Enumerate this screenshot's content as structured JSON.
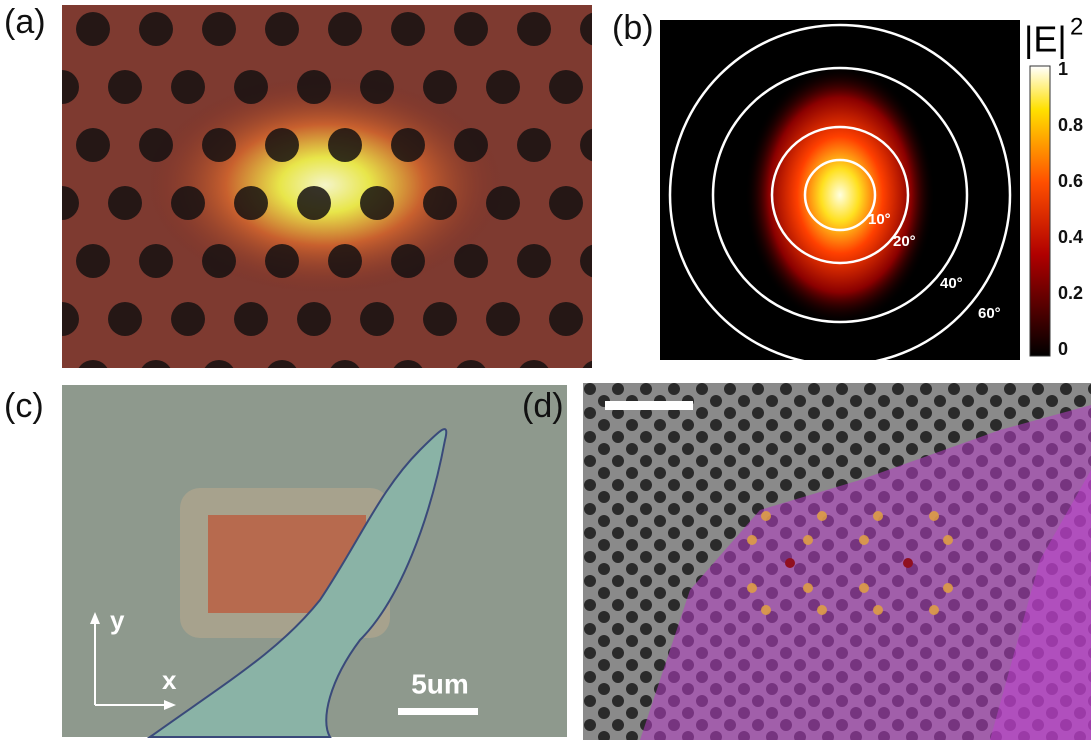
{
  "panels": [
    {
      "label": "(a)"
    },
    {
      "label": "(b)",
      "colorbar_title": "|E|",
      "colorbar_exponent": "2",
      "colorbar_ticks": [
        "1",
        "0.8",
        "0.6",
        "0.4",
        "0.2",
        "0"
      ],
      "angle_labels": [
        "10°",
        "20°",
        "40°",
        "60°"
      ]
    },
    {
      "label": "(c)",
      "axis_labels": [
        "y",
        "x"
      ],
      "scale_bar": "5um"
    },
    {
      "label": "(d)"
    }
  ]
}
